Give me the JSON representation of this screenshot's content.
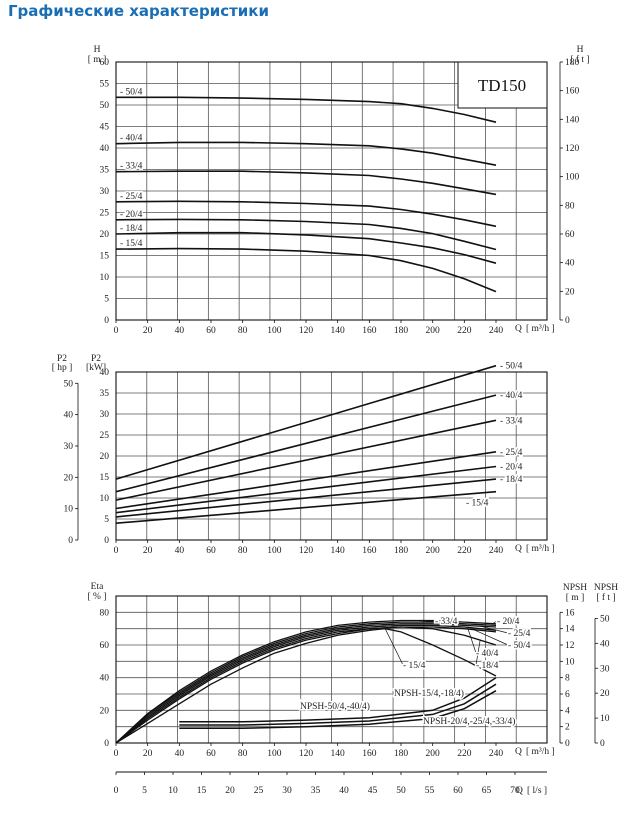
{
  "page_title": "Графические характеристики",
  "chart_data": [
    {
      "type": "line",
      "model_label": "TD150",
      "ylabel_left": "H",
      "ylabel_left_unit": "[ m ]",
      "ylabel_right": "H",
      "ylabel_right_unit": "[ f t ]",
      "xlabel": "Q",
      "xlabel_unit": "[ m³/h ]",
      "xlim": [
        0,
        240
      ],
      "ylim_left": [
        0,
        60
      ],
      "ylim_right": [
        0,
        180
      ],
      "xticks": [
        "0",
        "20",
        "40",
        "60",
        "80",
        "100",
        "120",
        "140",
        "160",
        "180",
        "200",
        "220",
        "240"
      ],
      "yticks_left": [
        "0",
        "5",
        "10",
        "15",
        "20",
        "25",
        "30",
        "35",
        "40",
        "45",
        "50",
        "55",
        "60"
      ],
      "yticks_right": [
        "0",
        "20",
        "40",
        "60",
        "80",
        "100",
        "120",
        "140",
        "160",
        "180"
      ],
      "grid": true,
      "series": [
        {
          "name": "50/4",
          "points": [
            [
              0,
              51.8
            ],
            [
              40,
              51.8
            ],
            [
              80,
              51.6
            ],
            [
              120,
              51.3
            ],
            [
              160,
              50.8
            ],
            [
              180,
              50.3
            ],
            [
              200,
              49.2
            ],
            [
              220,
              47.8
            ],
            [
              240,
              46.0
            ]
          ]
        },
        {
          "name": "40/4",
          "points": [
            [
              0,
              41.0
            ],
            [
              40,
              41.3
            ],
            [
              80,
              41.3
            ],
            [
              120,
              41.0
            ],
            [
              160,
              40.5
            ],
            [
              180,
              39.8
            ],
            [
              200,
              38.8
            ],
            [
              220,
              37.4
            ],
            [
              240,
              36.0
            ]
          ]
        },
        {
          "name": "33/4",
          "points": [
            [
              0,
              34.5
            ],
            [
              40,
              34.6
            ],
            [
              80,
              34.6
            ],
            [
              120,
              34.2
            ],
            [
              160,
              33.6
            ],
            [
              180,
              32.8
            ],
            [
              200,
              31.8
            ],
            [
              220,
              30.5
            ],
            [
              240,
              29.2
            ]
          ]
        },
        {
          "name": "25/4",
          "points": [
            [
              0,
              27.5
            ],
            [
              40,
              27.6
            ],
            [
              80,
              27.5
            ],
            [
              120,
              27.1
            ],
            [
              160,
              26.5
            ],
            [
              180,
              25.7
            ],
            [
              200,
              24.6
            ],
            [
              220,
              23.3
            ],
            [
              240,
              21.8
            ]
          ]
        },
        {
          "name": "20/4",
          "points": [
            [
              0,
              23.3
            ],
            [
              40,
              23.4
            ],
            [
              80,
              23.3
            ],
            [
              120,
              22.9
            ],
            [
              160,
              22.2
            ],
            [
              180,
              21.3
            ],
            [
              200,
              20.1
            ],
            [
              220,
              18.3
            ],
            [
              240,
              16.4
            ]
          ]
        },
        {
          "name": "18/4",
          "points": [
            [
              0,
              20.0
            ],
            [
              40,
              20.3
            ],
            [
              80,
              20.3
            ],
            [
              120,
              19.8
            ],
            [
              160,
              18.9
            ],
            [
              180,
              17.9
            ],
            [
              200,
              16.8
            ],
            [
              220,
              15.2
            ],
            [
              240,
              13.2
            ]
          ]
        },
        {
          "name": "15/4",
          "points": [
            [
              0,
              16.5
            ],
            [
              40,
              16.6
            ],
            [
              80,
              16.5
            ],
            [
              120,
              16.0
            ],
            [
              160,
              15.0
            ],
            [
              180,
              13.8
            ],
            [
              200,
              12.0
            ],
            [
              220,
              9.6
            ],
            [
              240,
              6.6
            ]
          ]
        }
      ]
    },
    {
      "type": "line",
      "ylabel_left": "P2",
      "ylabel_left_unit": "[kW]",
      "ylabel_far_left": "P2",
      "ylabel_far_left_unit": "[ hp ]",
      "xlabel": "Q",
      "xlabel_unit": "[ m³/h ]",
      "xlim": [
        0,
        240
      ],
      "ylim_left": [
        0,
        40
      ],
      "ylim_far_left": [
        0,
        53.6
      ],
      "xticks": [
        "0",
        "20",
        "40",
        "60",
        "80",
        "100",
        "120",
        "140",
        "160",
        "180",
        "200",
        "220",
        "240"
      ],
      "yticks_left": [
        "0",
        "5",
        "10",
        "15",
        "20",
        "25",
        "30",
        "35",
        "40"
      ],
      "yticks_far_left": [
        "0",
        "10",
        "20",
        "30",
        "40",
        "50"
      ],
      "grid": true,
      "series": [
        {
          "name": "50/4",
          "points": [
            [
              0,
              14.5
            ],
            [
              240,
              41.5
            ]
          ]
        },
        {
          "name": "40/4",
          "points": [
            [
              0,
              11.5
            ],
            [
              240,
              34.5
            ]
          ]
        },
        {
          "name": "33/4",
          "points": [
            [
              0,
              9.5
            ],
            [
              240,
              28.5
            ]
          ]
        },
        {
          "name": "25/4",
          "points": [
            [
              0,
              7.5
            ],
            [
              240,
              21.0
            ]
          ]
        },
        {
          "name": "20/4",
          "points": [
            [
              0,
              6.5
            ],
            [
              240,
              17.5
            ]
          ]
        },
        {
          "name": "18/4",
          "points": [
            [
              0,
              5.5
            ],
            [
              240,
              14.5
            ]
          ]
        },
        {
          "name": "15/4",
          "points": [
            [
              0,
              4.0
            ],
            [
              240,
              11.5
            ]
          ]
        }
      ]
    },
    {
      "type": "line",
      "ylabel_left": "Eta",
      "ylabel_left_unit": "[ % ]",
      "ylabel_right": "NPSH",
      "ylabel_right_unit": "[ m ]",
      "ylabel_far_right": "NPSH",
      "ylabel_far_right_unit": "[ f t ]",
      "xlabel": "Q",
      "xlabel_unit": "[ m³/h ]",
      "xlabel2": "Q",
      "xlabel2_unit": "[ l/s ]",
      "xlim": [
        0,
        240
      ],
      "ylim_left": [
        0,
        90
      ],
      "ylim_right": [
        0,
        18
      ],
      "ylim_far_right": [
        0,
        59
      ],
      "xticks": [
        "0",
        "20",
        "40",
        "60",
        "80",
        "100",
        "120",
        "140",
        "160",
        "180",
        "200",
        "220",
        "240"
      ],
      "xticks2": [
        "0",
        "5",
        "10",
        "15",
        "20",
        "25",
        "30",
        "35",
        "40",
        "45",
        "50",
        "55",
        "60",
        "65",
        "70"
      ],
      "yticks_left": [
        "0",
        "20",
        "40",
        "60",
        "80"
      ],
      "yticks_right": [
        "0",
        "2",
        "4",
        "6",
        "8",
        "10",
        "12",
        "14",
        "16"
      ],
      "yticks_far_right": [
        "0",
        "10",
        "20",
        "30",
        "40",
        "50"
      ],
      "grid": true,
      "eta_series": [
        {
          "name": "15/4",
          "points": [
            [
              0,
              0
            ],
            [
              20,
              12
            ],
            [
              40,
              24
            ],
            [
              60,
              36
            ],
            [
              80,
              46
            ],
            [
              100,
              55
            ],
            [
              120,
              61
            ],
            [
              140,
              66
            ],
            [
              160,
              69
            ],
            [
              170,
              70
            ],
            [
              180,
              68
            ],
            [
              200,
              60
            ],
            [
              220,
              51
            ],
            [
              240,
              41
            ]
          ]
        },
        {
          "name": "18/4",
          "points": [
            [
              0,
              0
            ],
            [
              20,
              14
            ],
            [
              40,
              27
            ],
            [
              60,
              39
            ],
            [
              80,
              49
            ],
            [
              100,
              57
            ],
            [
              120,
              63
            ],
            [
              140,
              67
            ],
            [
              160,
              70
            ],
            [
              180,
              71
            ],
            [
              200,
              70
            ],
            [
              220,
              66
            ],
            [
              240,
              60
            ]
          ]
        },
        {
          "name": "50/4",
          "points": [
            [
              0,
              0
            ],
            [
              20,
              15
            ],
            [
              40,
              28
            ],
            [
              60,
              40
            ],
            [
              80,
              50
            ],
            [
              100,
              58
            ],
            [
              120,
              64
            ],
            [
              140,
              68
            ],
            [
              160,
              70
            ],
            [
              180,
              71
            ],
            [
              200,
              71
            ],
            [
              220,
              70
            ],
            [
              240,
              68
            ]
          ]
        },
        {
          "name": "40/4",
          "points": [
            [
              0,
              0
            ],
            [
              20,
              16
            ],
            [
              40,
              29
            ],
            [
              60,
              41
            ],
            [
              80,
              51
            ],
            [
              100,
              59
            ],
            [
              120,
              65
            ],
            [
              140,
              69
            ],
            [
              160,
              71
            ],
            [
              180,
              72
            ],
            [
              200,
              72
            ],
            [
              220,
              71
            ],
            [
              240,
              69
            ]
          ]
        },
        {
          "name": "25/4",
          "points": [
            [
              0,
              0
            ],
            [
              20,
              17
            ],
            [
              40,
              30
            ],
            [
              60,
              42
            ],
            [
              80,
              52
            ],
            [
              100,
              60
            ],
            [
              120,
              66
            ],
            [
              140,
              70
            ],
            [
              160,
              72
            ],
            [
              180,
              73
            ],
            [
              200,
              73
            ],
            [
              220,
              72
            ],
            [
              240,
              71
            ]
          ]
        },
        {
          "name": "33/4",
          "points": [
            [
              0,
              0
            ],
            [
              20,
              18
            ],
            [
              40,
              31
            ],
            [
              60,
              43
            ],
            [
              80,
              53
            ],
            [
              100,
              61
            ],
            [
              120,
              67
            ],
            [
              140,
              71
            ],
            [
              160,
              73
            ],
            [
              180,
              74
            ],
            [
              200,
              74
            ],
            [
              220,
              73
            ],
            [
              240,
              72
            ]
          ]
        },
        {
          "name": "20/4",
          "points": [
            [
              0,
              0
            ],
            [
              20,
              18
            ],
            [
              40,
              32
            ],
            [
              60,
              44
            ],
            [
              80,
              54
            ],
            [
              100,
              62
            ],
            [
              120,
              68
            ],
            [
              140,
              72
            ],
            [
              160,
              74
            ],
            [
              180,
              75
            ],
            [
              200,
              75
            ],
            [
              220,
              74
            ],
            [
              240,
              73
            ]
          ]
        }
      ],
      "npsh_series": [
        {
          "name": "NPSH-15/4,-18/4)",
          "points": [
            [
              40,
              2.6
            ],
            [
              80,
              2.6
            ],
            [
              120,
              2.8
            ],
            [
              160,
              3.1
            ],
            [
              200,
              4.0
            ],
            [
              220,
              5.5
            ],
            [
              240,
              8.0
            ]
          ]
        },
        {
          "name": "NPSH-50/4,-40/4)",
          "points": [
            [
              40,
              2.2
            ],
            [
              80,
              2.2
            ],
            [
              120,
              2.4
            ],
            [
              160,
              2.7
            ],
            [
              200,
              3.5
            ],
            [
              220,
              4.8
            ],
            [
              240,
              7.2
            ]
          ]
        },
        {
          "name": "NPSH-20/4,-25/4,-33/4)",
          "points": [
            [
              40,
              1.8
            ],
            [
              80,
              1.8
            ],
            [
              120,
              2.0
            ],
            [
              160,
              2.3
            ],
            [
              200,
              3.0
            ],
            [
              220,
              4.2
            ],
            [
              240,
              6.4
            ]
          ]
        }
      ]
    }
  ]
}
